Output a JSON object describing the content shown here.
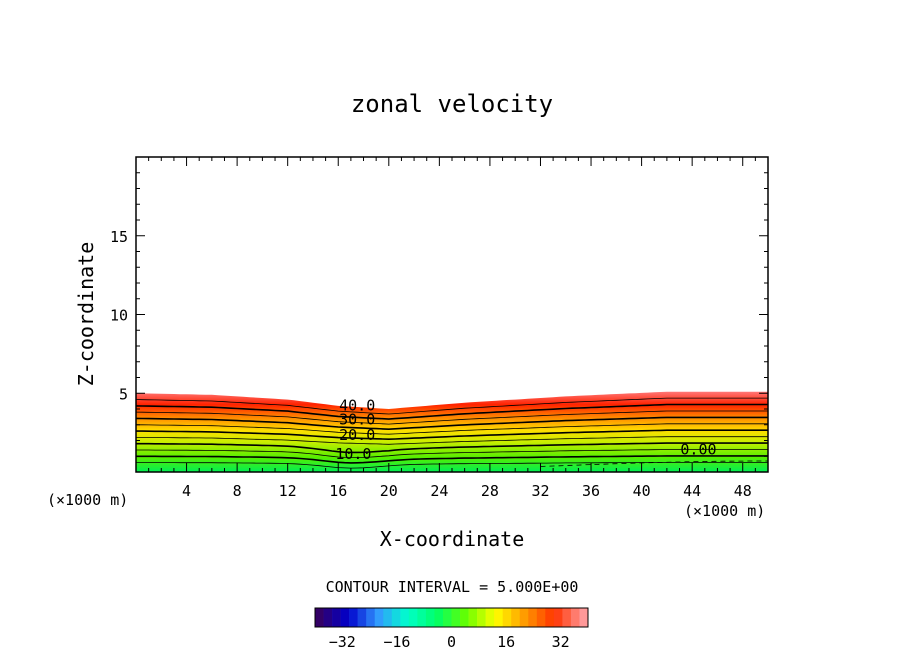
{
  "chart_data": {
    "type": "contour",
    "title": "zonal velocity",
    "xlabel": "X-coordinate",
    "ylabel": "Z-coordinate",
    "x_unit_left": "(×1000 m)",
    "x_unit_right": "(×1000 m)",
    "xlim": [
      0,
      50
    ],
    "ylim": [
      0,
      20
    ],
    "x_ticks": [
      4,
      8,
      12,
      16,
      20,
      24,
      28,
      32,
      36,
      40,
      44,
      48
    ],
    "y_ticks": [
      5,
      10,
      15
    ],
    "contour_interval_text": "CONTOUR INTERVAL = 5.000E+00",
    "contour_labels": [
      {
        "text": "40.0",
        "x": 17.5,
        "y": 4.3
      },
      {
        "text": "30.0",
        "x": 17.5,
        "y": 3.4
      },
      {
        "text": "20.0",
        "x": 17.5,
        "y": 2.4
      },
      {
        "text": "10.0",
        "x": 17.2,
        "y": 1.2
      },
      {
        "text": "0.00",
        "x": 44.5,
        "y": 1.5
      }
    ],
    "top_of_field_z": [
      [
        0,
        5.0
      ],
      [
        6,
        4.9
      ],
      [
        12,
        4.6
      ],
      [
        16,
        4.2
      ],
      [
        20,
        4.0
      ],
      [
        26,
        4.4
      ],
      [
        34,
        4.8
      ],
      [
        42,
        5.1
      ],
      [
        50,
        5.1
      ]
    ],
    "colorbar": {
      "min": -40,
      "max": 40,
      "ticks": [
        -32,
        -16,
        0,
        16,
        32
      ],
      "colors": [
        "#330066",
        "#0000cc",
        "#3399ff",
        "#00ffcc",
        "#00ff66",
        "#66ff00",
        "#ffff00",
        "#ff9900",
        "#ff3300",
        "#ff9999"
      ]
    }
  }
}
